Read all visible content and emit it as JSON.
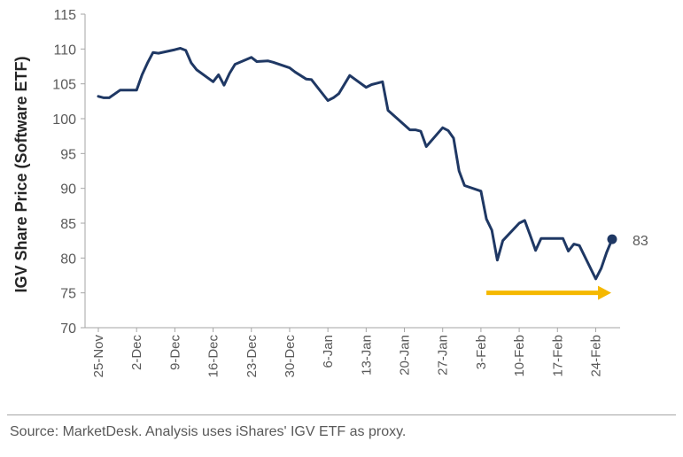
{
  "chart_data": {
    "type": "line",
    "ylabel": "IGV Share Price (Software ETF)",
    "xlabel": "",
    "ylim": [
      70,
      115
    ],
    "yticks": [
      "70",
      "75",
      "80",
      "85",
      "90",
      "95",
      "100",
      "105",
      "110",
      "115"
    ],
    "xticks": [
      "25-Nov",
      "2-Dec",
      "9-Dec",
      "16-Dec",
      "23-Dec",
      "30-Dec",
      "6-Jan",
      "13-Jan",
      "20-Jan",
      "27-Jan",
      "3-Feb",
      "10-Feb",
      "17-Feb",
      "24-Feb"
    ],
    "grid": false,
    "series": [
      {
        "color": "#1f3864",
        "x": [
          "25-Nov",
          "26-Nov",
          "27-Nov",
          "29-Nov",
          "2-Dec",
          "3-Dec",
          "4-Dec",
          "5-Dec",
          "6-Dec",
          "9-Dec",
          "10-Dec",
          "11-Dec",
          "12-Dec",
          "13-Dec",
          "16-Dec",
          "17-Dec",
          "18-Dec",
          "19-Dec",
          "20-Dec",
          "23-Dec",
          "24-Dec",
          "26-Dec",
          "27-Dec",
          "30-Dec",
          "31-Dec",
          "2-Jan",
          "3-Jan",
          "6-Jan",
          "7-Jan",
          "8-Jan",
          "10-Jan",
          "13-Jan",
          "14-Jan",
          "15-Jan",
          "16-Jan",
          "17-Jan",
          "21-Jan",
          "22-Jan",
          "23-Jan",
          "24-Jan",
          "27-Jan",
          "28-Jan",
          "29-Jan",
          "30-Jan",
          "31-Jan",
          "3-Feb",
          "4-Feb",
          "5-Feb",
          "6-Feb",
          "7-Feb",
          "10-Feb",
          "11-Feb",
          "12-Feb",
          "13-Feb",
          "14-Feb",
          "18-Feb",
          "19-Feb",
          "20-Feb",
          "21-Feb",
          "24-Feb",
          "25-Feb",
          "26-Feb",
          "27-Feb"
        ],
        "values": [
          103.2,
          103.0,
          103.0,
          104.1,
          104.1,
          106.3,
          108.0,
          109.5,
          109.4,
          109.9,
          110.1,
          109.8,
          108.0,
          107.0,
          105.3,
          106.3,
          104.8,
          106.5,
          107.8,
          108.8,
          108.2,
          108.3,
          108.1,
          107.3,
          106.7,
          105.7,
          105.6,
          102.6,
          103.0,
          103.6,
          106.2,
          104.5,
          104.9,
          105.1,
          105.3,
          101.2,
          98.4,
          98.4,
          98.2,
          96.0,
          98.7,
          98.3,
          97.2,
          92.5,
          90.4,
          89.6,
          85.6,
          84.0,
          79.7,
          82.5,
          85.0,
          85.4,
          83.3,
          81.1,
          82.8,
          82.8,
          81.0,
          82.0,
          81.8,
          77.0,
          78.5,
          80.8,
          82.7
        ]
      }
    ],
    "annotations": [
      {
        "text": "83",
        "x": "27-Feb",
        "value": 82.7
      }
    ],
    "arrow": {
      "from": "4-Feb",
      "to": "27-Feb",
      "value": 75.0,
      "color": "#f5b800"
    }
  },
  "source": "Source: MarketDesk. Analysis uses iShares' IGV ETF as proxy."
}
